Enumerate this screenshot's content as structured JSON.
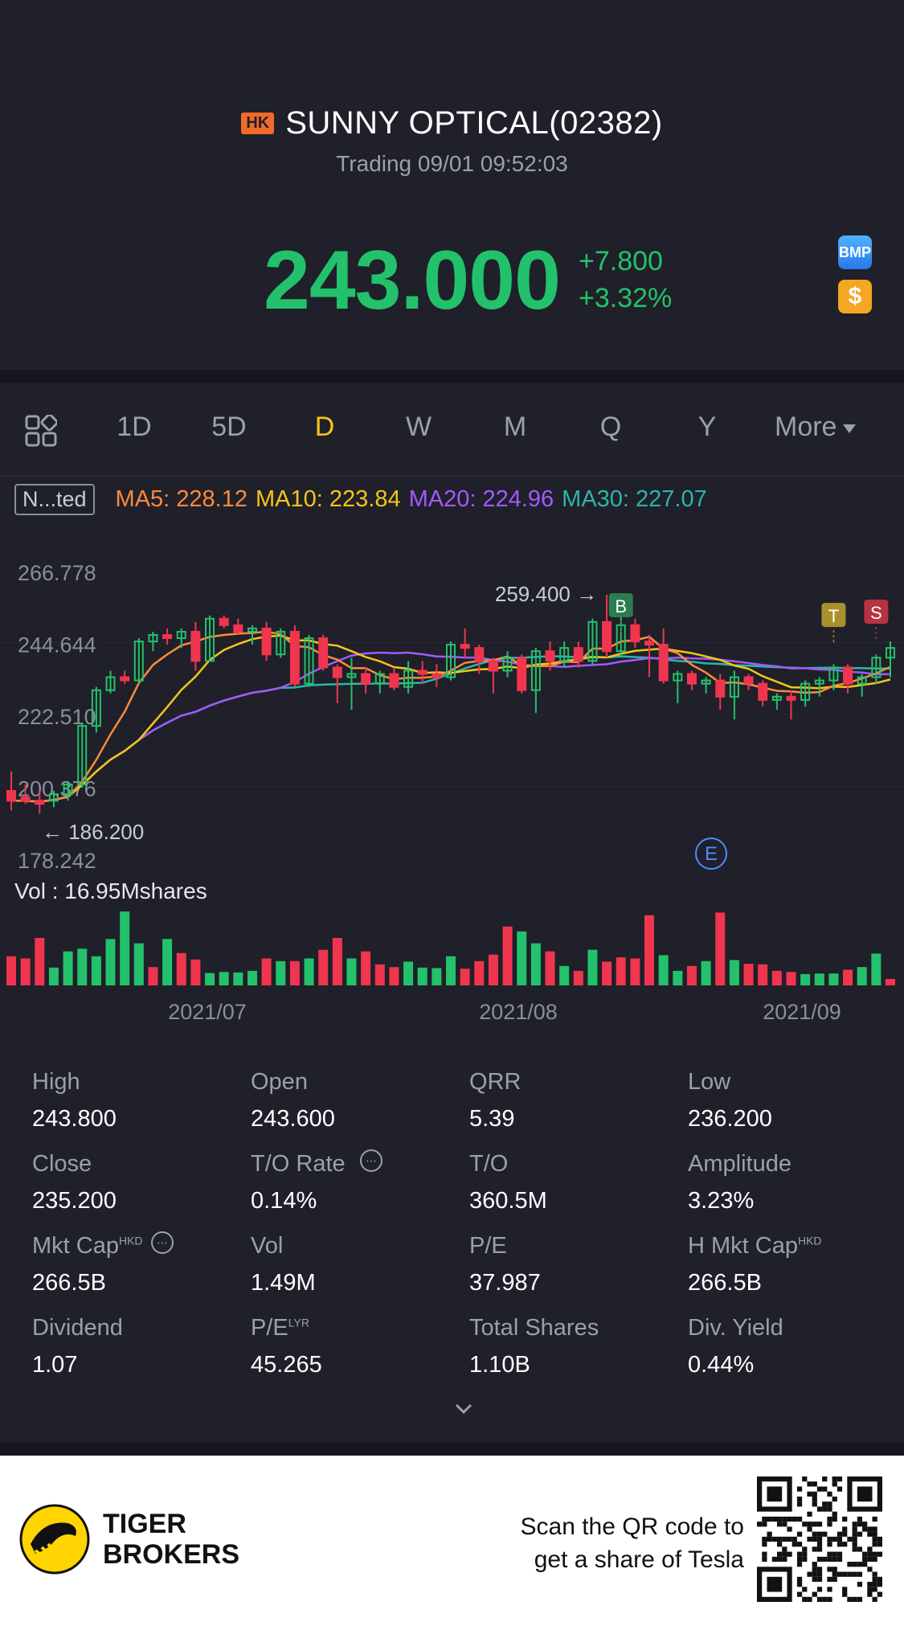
{
  "header": {
    "market_badge": "HK",
    "title": "SUNNY OPTICAL(02382)",
    "status": "Trading 09/01 09:52:03",
    "price": "243.000",
    "change_abs": "+7.800",
    "change_pct": "+3.32%",
    "badge_bmp": "BMP",
    "badge_dollar": "$",
    "up_color": "#23c16b",
    "down_color": "#f0354f"
  },
  "tabs": [
    {
      "label": "1D",
      "active": false
    },
    {
      "label": "5D",
      "active": false
    },
    {
      "label": "D",
      "active": true
    },
    {
      "label": "W",
      "active": false
    },
    {
      "label": "M",
      "active": false
    },
    {
      "label": "Q",
      "active": false
    },
    {
      "label": "Y",
      "active": false
    }
  ],
  "more_label": "More",
  "ma": {
    "adjust_label": "N...ted",
    "ma5": "MA5: 228.12",
    "ma10": "MA10: 223.84",
    "ma20": "MA20: 224.96",
    "ma30": "MA30: 227.07"
  },
  "chart_data": {
    "type": "candlestick",
    "y_ticks": [
      "266.778",
      "244.644",
      "222.510",
      "200.376",
      "178.242"
    ],
    "ylim": [
      178.242,
      266.778
    ],
    "x_labels": [
      "2021/07",
      "2021/08",
      "2021/09"
    ],
    "max_annotation": "259.400",
    "min_annotation": "186.200",
    "markers": [
      "B",
      "T",
      "S",
      "E"
    ],
    "volume_label": "Vol  : 16.95Mshares",
    "candles_ohlc": [
      [
        199,
        205,
        193,
        196
      ],
      [
        197,
        201,
        195,
        196
      ],
      [
        196,
        199,
        192,
        195
      ],
      [
        196,
        199,
        194,
        198
      ],
      [
        198,
        202,
        196,
        201
      ],
      [
        201,
        220,
        200,
        219
      ],
      [
        219,
        231,
        217,
        230
      ],
      [
        230,
        236,
        229,
        234
      ],
      [
        234,
        236,
        232,
        233
      ],
      [
        233,
        246,
        232,
        245
      ],
      [
        245,
        248,
        242,
        247
      ],
      [
        247,
        249,
        244,
        246
      ],
      [
        246,
        249,
        243,
        248
      ],
      [
        248,
        251,
        236,
        239
      ],
      [
        239,
        253,
        239,
        252
      ],
      [
        252,
        253,
        249,
        250
      ],
      [
        250,
        252,
        247,
        248
      ],
      [
        248,
        250,
        244,
        249
      ],
      [
        249,
        251,
        239,
        241
      ],
      [
        241,
        249,
        240,
        248
      ],
      [
        248,
        250,
        231,
        232
      ],
      [
        232,
        247,
        231,
        246
      ],
      [
        246,
        247,
        236,
        237
      ],
      [
        237,
        238,
        226,
        234
      ],
      [
        234,
        240,
        224,
        235
      ],
      [
        235,
        237,
        229,
        232
      ],
      [
        232,
        236,
        229,
        235
      ],
      [
        235,
        237,
        230,
        231
      ],
      [
        231,
        239,
        229,
        236
      ],
      [
        236,
        239,
        232,
        235
      ],
      [
        235,
        238,
        231,
        234
      ],
      [
        234,
        245,
        233,
        244
      ],
      [
        244,
        249,
        240,
        243
      ],
      [
        243,
        244,
        235,
        239
      ],
      [
        239,
        240,
        229,
        236
      ],
      [
        236,
        242,
        234,
        240
      ],
      [
        240,
        241,
        229,
        230
      ],
      [
        230,
        243,
        223,
        242
      ],
      [
        242,
        245,
        236,
        239
      ],
      [
        239,
        245,
        237,
        243
      ],
      [
        243,
        245,
        237,
        239
      ],
      [
        239,
        252,
        238,
        251
      ],
      [
        251,
        259.4,
        240,
        242
      ],
      [
        242,
        255,
        240,
        250
      ],
      [
        250,
        252,
        243,
        245
      ],
      [
        245,
        247,
        234,
        244
      ],
      [
        244,
        249,
        232,
        233
      ],
      [
        233,
        236,
        226,
        235
      ],
      [
        235,
        236,
        230,
        232
      ],
      [
        232,
        234,
        229,
        233
      ],
      [
        233,
        235,
        224,
        228
      ],
      [
        228,
        236,
        221,
        234
      ],
      [
        234,
        235,
        230,
        232
      ],
      [
        232,
        233,
        225,
        227
      ],
      [
        227,
        229,
        224,
        228
      ],
      [
        228,
        230,
        221,
        227
      ],
      [
        227,
        233,
        225,
        232
      ],
      [
        232,
        234,
        228,
        233
      ],
      [
        233,
        238,
        230,
        237
      ],
      [
        237,
        238,
        229,
        232
      ],
      [
        232,
        235,
        228,
        234
      ],
      [
        234,
        241,
        232,
        240
      ],
      [
        240,
        245,
        234,
        243
      ]
    ],
    "volume_bars": [
      5.4,
      5.0,
      8.8,
      3.3,
      6.3,
      6.8,
      5.4,
      8.6,
      13.7,
      7.8,
      3.4,
      8.6,
      6.0,
      4.8,
      2.3,
      2.5,
      2.4,
      2.7,
      5.0,
      4.5,
      4.5,
      5.0,
      6.6,
      8.8,
      5.0,
      6.3,
      3.9,
      3.4,
      4.4,
      3.3,
      3.2,
      5.4,
      3.1,
      4.5,
      5.7,
      10.9,
      10.0,
      7.8,
      6.3,
      3.6,
      2.7,
      6.6,
      4.4,
      5.2,
      5.0,
      13.0,
      5.6,
      2.7,
      3.6,
      4.5,
      13.5,
      4.7,
      4.0,
      3.9,
      2.7,
      2.5,
      2.1,
      2.2,
      2.2,
      2.9,
      3.4,
      5.9,
      1.2
    ],
    "volume_up": [
      false,
      false,
      false,
      true,
      true,
      true,
      true,
      true,
      true,
      true,
      false,
      true,
      false,
      false,
      true,
      true,
      true,
      true,
      false,
      true,
      false,
      true,
      false,
      false,
      true,
      false,
      false,
      false,
      true,
      true,
      true,
      true,
      false,
      false,
      false,
      false,
      true,
      true,
      false,
      true,
      false,
      true,
      false,
      false,
      false,
      false,
      true,
      true,
      false,
      true,
      false,
      true,
      false,
      false,
      false,
      false,
      true,
      true,
      true,
      false,
      true,
      true,
      false
    ]
  },
  "stats": [
    {
      "label": "High",
      "value": "243.800"
    },
    {
      "label": "Open",
      "value": "243.600"
    },
    {
      "label": "QRR",
      "value": "5.39"
    },
    {
      "label": "Low",
      "value": "236.200"
    },
    {
      "label": "Close",
      "value": "235.200"
    },
    {
      "label": "T/O Rate",
      "value": "0.14%"
    },
    {
      "label": "T/O",
      "value": "360.5M"
    },
    {
      "label": "Amplitude",
      "value": "3.23%"
    },
    {
      "label": "Mkt Cap",
      "value": "266.5B",
      "sup": "HKD"
    },
    {
      "label": "Vol",
      "value": "1.49M"
    },
    {
      "label": "P/E",
      "value": "37.987"
    },
    {
      "label": "H Mkt Cap",
      "value": "266.5B",
      "sup": "HKD"
    },
    {
      "label": "Dividend",
      "value": "1.07"
    },
    {
      "label": "P/E",
      "value": "45.265",
      "sup": "LYR"
    },
    {
      "label": "Total Shares",
      "value": "1.10B"
    },
    {
      "label": "Div. Yield",
      "value": "0.44%"
    }
  ],
  "footer": {
    "brand_line1": "TIGER",
    "brand_line2": "BROKERS",
    "scan_line1": "Scan the QR code to",
    "scan_line2": "get a share of Tesla"
  }
}
